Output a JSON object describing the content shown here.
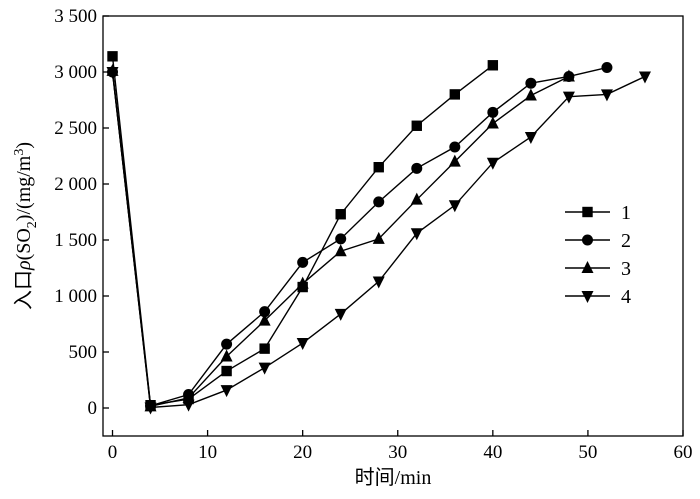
{
  "chart_data": {
    "type": "line",
    "title": "",
    "xlabel": "时间/min",
    "ylabel": "入口ρ(SO2)/(mg/m3)",
    "ylabel_parts": [
      "入口",
      "ρ",
      "(SO",
      "2",
      ")/(mg/m",
      "3",
      ")"
    ],
    "xlim": [
      -1,
      60
    ],
    "ylim": [
      -250,
      3500
    ],
    "x_ticks": [
      0,
      10,
      20,
      30,
      40,
      50,
      60
    ],
    "x_tick_labels": [
      "0",
      "10",
      "20",
      "30",
      "40",
      "50",
      "60"
    ],
    "y_ticks": [
      0,
      500,
      1000,
      1500,
      2000,
      2500,
      3000,
      3500
    ],
    "y_tick_labels": [
      "0",
      "500",
      "1 000",
      "1 500",
      "2 000",
      "2 500",
      "3 000",
      "3 500"
    ],
    "grid": false,
    "legend_position": "right-center",
    "series": [
      {
        "name": "1",
        "marker": "square",
        "x": [
          0,
          4,
          8,
          12,
          16,
          20,
          24,
          28,
          32,
          36,
          40
        ],
        "y": [
          3140,
          25,
          80,
          330,
          530,
          1080,
          1730,
          2150,
          2520,
          2800,
          3060
        ]
      },
      {
        "name": "2",
        "marker": "circle",
        "x": [
          0,
          4,
          8,
          12,
          16,
          20,
          24,
          28,
          32,
          36,
          40,
          44,
          48,
          52
        ],
        "y": [
          3000,
          20,
          120,
          570,
          860,
          1300,
          1510,
          1840,
          2140,
          2330,
          2640,
          2900,
          2960,
          3040
        ]
      },
      {
        "name": "3",
        "marker": "triangle-up",
        "x": [
          0,
          4,
          8,
          12,
          16,
          20,
          24,
          28,
          32,
          36,
          40,
          44,
          48
        ],
        "y": [
          3010,
          15,
          90,
          460,
          780,
          1110,
          1400,
          1510,
          1860,
          2200,
          2540,
          2790,
          2960
        ]
      },
      {
        "name": "4",
        "marker": "triangle-down",
        "x": [
          0,
          4,
          8,
          12,
          16,
          20,
          24,
          28,
          32,
          36,
          40,
          44,
          48,
          52,
          56
        ],
        "y": [
          3000,
          5,
          30,
          160,
          360,
          580,
          840,
          1130,
          1560,
          1810,
          2190,
          2420,
          2780,
          2800,
          2960
        ]
      }
    ]
  }
}
